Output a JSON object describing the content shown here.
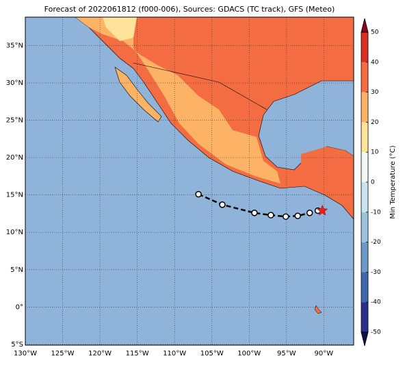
{
  "map": {
    "title": "Forecast of 2022061812 (f000-006), Sources: GDACS (TC track), GFS (Meteo)",
    "lonlim": [
      -130,
      -86
    ],
    "latlim": [
      -5.1,
      38.8
    ],
    "xticks": [
      {
        "value": -130,
        "label": "130°W"
      },
      {
        "value": -125,
        "label": "125°W"
      },
      {
        "value": -120,
        "label": "120°W"
      },
      {
        "value": -115,
        "label": "115°W"
      },
      {
        "value": -110,
        "label": "110°W"
      },
      {
        "value": -105,
        "label": "105°W"
      },
      {
        "value": -100,
        "label": "100°W"
      },
      {
        "value": -95,
        "label": "95°W"
      },
      {
        "value": -90,
        "label": "90°W"
      }
    ],
    "yticks": [
      {
        "value": -5,
        "label": "5°S"
      },
      {
        "value": 0,
        "label": "0°"
      },
      {
        "value": 5,
        "label": "5°N"
      },
      {
        "value": 10,
        "label": "10°N"
      },
      {
        "value": 15,
        "label": "15°N"
      },
      {
        "value": 20,
        "label": "20°N"
      },
      {
        "value": 25,
        "label": "25°N"
      },
      {
        "value": 30,
        "label": "30°N"
      },
      {
        "value": 35,
        "label": "35°N"
      }
    ],
    "grid": true,
    "ocean_color": "#8fb3d9",
    "track": {
      "lon": [
        -106.8,
        -103.6,
        -99.3,
        -97.1,
        -95.1,
        -93.5,
        -91.9,
        -90.8
      ],
      "lat": [
        15.1,
        13.7,
        12.6,
        12.3,
        12.1,
        12.2,
        12.6,
        12.9
      ]
    },
    "current": {
      "lon": -90.2,
      "lat": 12.9
    },
    "colorbar": {
      "label": "Min Temperature (°C)",
      "ticks": [
        -50,
        -40,
        -30,
        -20,
        -10,
        0,
        10,
        20,
        30,
        40,
        50
      ],
      "colors": [
        "#2c2f8a",
        "#4068ad",
        "#6b9ac8",
        "#9cc4de",
        "#c9e3ef",
        "#eef8f6",
        "#fee39a",
        "#fdb366",
        "#f36c42",
        "#d73027"
      ],
      "extend_colors": [
        "#10104a",
        "#8e0120"
      ]
    }
  }
}
